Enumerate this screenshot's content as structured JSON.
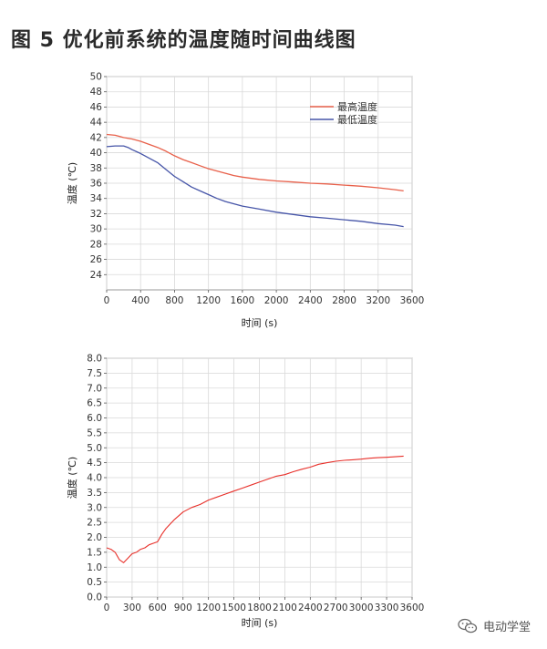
{
  "figure": {
    "title": "图 5    优化前系统的温度随时间曲线图"
  },
  "watermark": {
    "text": "电动学堂",
    "icon": "wechat-icon"
  },
  "colors": {
    "max": "#e8604a",
    "min": "#4655a8",
    "delta": "#e8302a",
    "grid": "#d9d9d9"
  },
  "chart_data": [
    {
      "type": "line",
      "xlabel": "时间 (s)",
      "ylabel": "温度 (℃)",
      "xlim": [
        0,
        3600
      ],
      "ylim": [
        22,
        50
      ],
      "xticks": [
        0,
        400,
        800,
        1200,
        1600,
        2000,
        2400,
        2800,
        3200,
        3600
      ],
      "yticks": [
        24,
        26,
        28,
        30,
        32,
        34,
        36,
        38,
        40,
        42,
        44,
        46,
        48,
        50
      ],
      "grid": true,
      "legend": "top-right",
      "series": [
        {
          "name": "最高温度",
          "color": "#e8604a",
          "x": [
            0,
            100,
            200,
            300,
            400,
            500,
            600,
            700,
            800,
            900,
            1000,
            1100,
            1200,
            1300,
            1400,
            1500,
            1600,
            1800,
            2000,
            2200,
            2400,
            2600,
            2800,
            3000,
            3200,
            3400,
            3500
          ],
          "y": [
            42.4,
            42.3,
            42.0,
            41.8,
            41.5,
            41.1,
            40.7,
            40.2,
            39.6,
            39.1,
            38.7,
            38.3,
            37.9,
            37.6,
            37.3,
            37.0,
            36.8,
            36.5,
            36.3,
            36.15,
            36.0,
            35.9,
            35.75,
            35.6,
            35.4,
            35.15,
            35.0
          ]
        },
        {
          "name": "最低温度",
          "color": "#4655a8",
          "x": [
            0,
            100,
            200,
            250,
            300,
            400,
            500,
            600,
            700,
            800,
            900,
            1000,
            1100,
            1200,
            1300,
            1400,
            1500,
            1600,
            1800,
            2000,
            2200,
            2400,
            2600,
            2800,
            3000,
            3200,
            3400,
            3500
          ],
          "y": [
            40.8,
            40.9,
            40.9,
            40.7,
            40.4,
            39.9,
            39.3,
            38.7,
            37.8,
            36.9,
            36.2,
            35.5,
            35.0,
            34.5,
            34.0,
            33.6,
            33.3,
            33.0,
            32.6,
            32.2,
            31.9,
            31.6,
            31.4,
            31.2,
            31.0,
            30.7,
            30.5,
            30.3
          ]
        }
      ]
    },
    {
      "type": "line",
      "xlabel": "时间 (s)",
      "ylabel": "温度 (℃)",
      "xlim": [
        0,
        3600
      ],
      "ylim": [
        0,
        8
      ],
      "xticks": [
        0,
        300,
        600,
        900,
        1200,
        1500,
        1800,
        2100,
        2400,
        2700,
        3000,
        3300,
        3600
      ],
      "yticks": [
        0.0,
        0.5,
        1.0,
        1.5,
        2.0,
        2.5,
        3.0,
        3.5,
        4.0,
        4.5,
        5.0,
        5.5,
        6.0,
        6.5,
        7.0,
        7.5,
        8.0
      ],
      "grid": true,
      "series": [
        {
          "color": "#e8302a",
          "x": [
            0,
            50,
            100,
            150,
            200,
            250,
            300,
            350,
            400,
            450,
            500,
            550,
            600,
            650,
            700,
            800,
            900,
            1000,
            1100,
            1200,
            1300,
            1400,
            1500,
            1600,
            1700,
            1800,
            1900,
            2000,
            2100,
            2200,
            2300,
            2400,
            2500,
            2600,
            2700,
            2800,
            2900,
            3000,
            3100,
            3200,
            3300,
            3400,
            3500
          ],
          "y": [
            1.65,
            1.6,
            1.5,
            1.25,
            1.15,
            1.3,
            1.45,
            1.5,
            1.6,
            1.65,
            1.75,
            1.8,
            1.85,
            2.1,
            2.3,
            2.6,
            2.85,
            3.0,
            3.1,
            3.25,
            3.35,
            3.45,
            3.55,
            3.65,
            3.75,
            3.85,
            3.95,
            4.05,
            4.1,
            4.2,
            4.28,
            4.35,
            4.45,
            4.5,
            4.55,
            4.58,
            4.6,
            4.62,
            4.65,
            4.67,
            4.68,
            4.7,
            4.72
          ]
        }
      ]
    }
  ]
}
